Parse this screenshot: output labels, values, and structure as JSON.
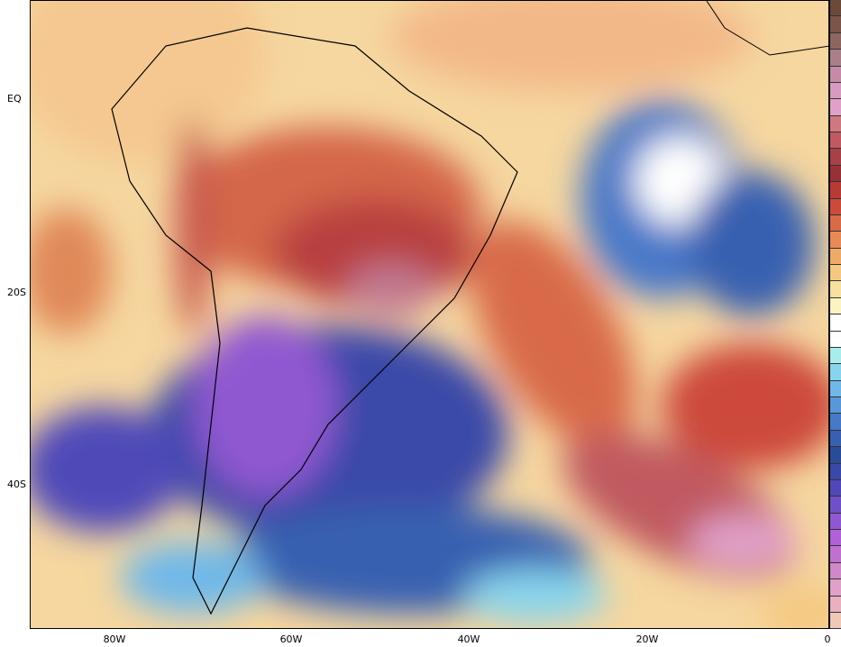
{
  "axes": {
    "lat_labels": [
      "EQ",
      "20S",
      "40S"
    ],
    "lon_labels": [
      "80W",
      "60W",
      "40W",
      "20W",
      "0"
    ]
  },
  "colorbar": {
    "colors": [
      "#6b4a3a",
      "#7a5548",
      "#8e6660",
      "#a9808a",
      "#c48aa8",
      "#d89ac0",
      "#e0a0c8",
      "#d0787f",
      "#c05a60",
      "#a84048",
      "#983038",
      "#b83a36",
      "#cc4a3a",
      "#d86a48",
      "#e88a58",
      "#f0aa68",
      "#f4c880",
      "#f8e0a0",
      "#fcf4c0",
      "#ffffff",
      "#ffffff",
      "#a8ecec",
      "#88d4ec",
      "#70b8e8",
      "#5898d8",
      "#4878c8",
      "#3860b0",
      "#284c98",
      "#3a48a8",
      "#5048b8",
      "#7050c8",
      "#9058d0",
      "#b060d8",
      "#c070d0",
      "#d088c8",
      "#e0a0c8",
      "#e8b0c0",
      "#f0c8b8"
    ]
  }
}
